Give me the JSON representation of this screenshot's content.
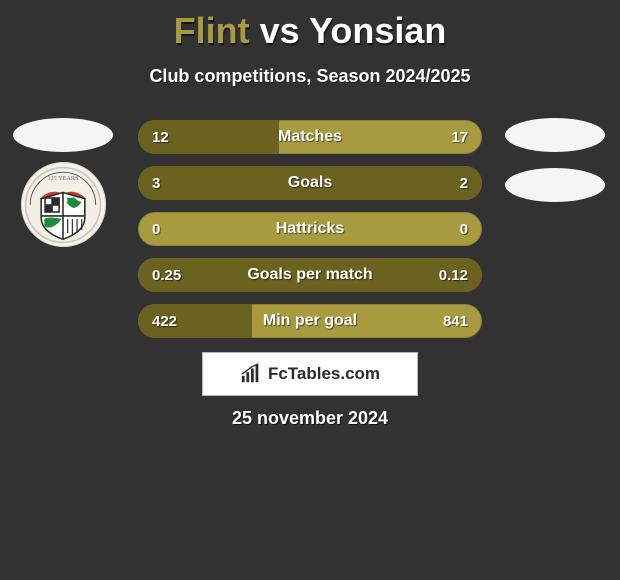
{
  "title": {
    "team_a": "Flint",
    "vs": "vs",
    "team_b": "Yonsian",
    "team_a_color": "#a89b3f",
    "team_b_color": "#ffffff"
  },
  "subtitle": "Club competitions, Season 2024/2025",
  "bars": {
    "bar_bg": "#a89b3f",
    "fill_color": "#6b621f",
    "height": 34,
    "gap": 12,
    "items": [
      {
        "label": "Matches",
        "left_val": "12",
        "right_val": "17",
        "left_pct": 41,
        "right_pct": 0
      },
      {
        "label": "Goals",
        "left_val": "3",
        "right_val": "2",
        "left_pct": 60,
        "right_pct": 40
      },
      {
        "label": "Hattricks",
        "left_val": "0",
        "right_val": "0",
        "left_pct": 0,
        "right_pct": 0
      },
      {
        "label": "Goals per match",
        "left_val": "0.25",
        "right_val": "0.12",
        "left_pct": 67,
        "right_pct": 33
      },
      {
        "label": "Min per goal",
        "left_val": "422",
        "right_val": "841",
        "left_pct": 33,
        "right_pct": 0
      }
    ]
  },
  "brand": "FcTables.com",
  "date": "25 november 2024",
  "background_color": "#323232"
}
